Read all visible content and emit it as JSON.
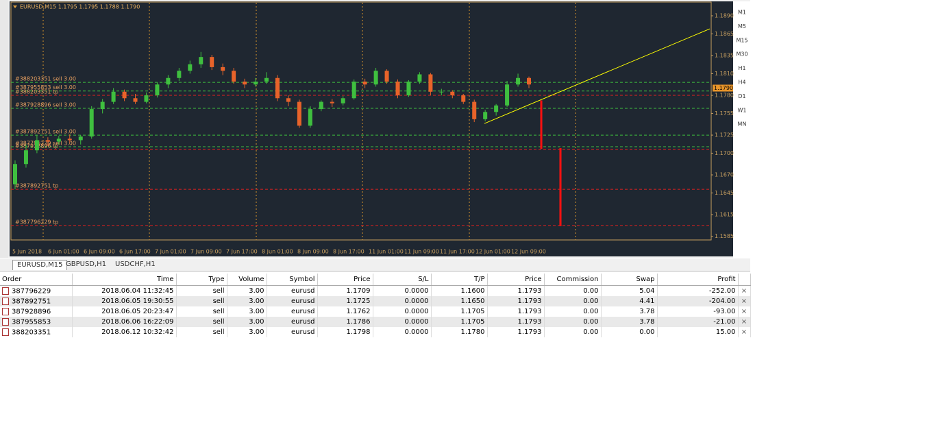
{
  "chart": {
    "title": "EURUSD,M15  1.1795 1.1795 1.1788 1.1790",
    "ylim": [
      1.158,
      1.1909
    ],
    "yticks": [
      {
        "value": 1.189,
        "label": "1.1890"
      },
      1.1865,
      1.1835,
      {
        "value": 1.181,
        "label": "1.1810"
      },
      {
        "value": 1.178,
        "label": "1.1780"
      },
      1.1755,
      1.1725,
      {
        "value": 1.17,
        "label": "1.1700"
      },
      {
        "value": 1.167,
        "label": "1.1670"
      },
      1.1645,
      1.1615,
      1.1585
    ],
    "xticks": [
      "5 Jun 2018",
      "6 Jun 01:00",
      "6 Jun 09:00",
      "6 Jun 17:00",
      "7 Jun 01:00",
      "7 Jun 09:00",
      "7 Jun 17:00",
      "8 Jun 01:00",
      "8 Jun 09:00",
      "8 Jun 17:00",
      "11 Jun 01:00",
      "11 Jun 09:00",
      "11 Jun 17:00",
      "12 Jun 01:00",
      "12 Jun 09:00"
    ],
    "timeframes": [
      "M1",
      "M5",
      "M15",
      "M30",
      "H1",
      "H4",
      "D1",
      "W1",
      "MN"
    ],
    "up_color": "#3fbf3f",
    "down_color": "#e8632a",
    "candles": [
      [
        1.1657,
        1.169,
        1.165,
        1.1685
      ],
      [
        1.1685,
        1.1712,
        1.168,
        1.1704
      ],
      [
        1.1704,
        1.1725,
        1.17,
        1.1718
      ],
      [
        1.1718,
        1.1722,
        1.171,
        1.1716
      ],
      [
        1.1716,
        1.1724,
        1.1712,
        1.172
      ],
      [
        1.172,
        1.1726,
        1.1714,
        1.1718
      ],
      [
        1.1718,
        1.1725,
        1.1712,
        1.1723
      ],
      [
        1.1723,
        1.1765,
        1.172,
        1.1761
      ],
      [
        1.1761,
        1.1775,
        1.1755,
        1.1771
      ],
      [
        1.1771,
        1.179,
        1.1768,
        1.1785
      ],
      [
        1.1785,
        1.1788,
        1.1772,
        1.1776
      ],
      [
        1.1776,
        1.1782,
        1.1768,
        1.1771
      ],
      [
        1.1771,
        1.1784,
        1.1769,
        1.178
      ],
      [
        1.178,
        1.1798,
        1.1777,
        1.1795
      ],
      [
        1.1795,
        1.1808,
        1.179,
        1.1804
      ],
      [
        1.1804,
        1.1818,
        1.18,
        1.1814
      ],
      [
        1.1814,
        1.1828,
        1.181,
        1.1823
      ],
      [
        1.1823,
        1.184,
        1.1818,
        1.1833
      ],
      [
        1.1833,
        1.1836,
        1.1815,
        1.1819
      ],
      [
        1.1819,
        1.1824,
        1.1808,
        1.1814
      ],
      [
        1.1814,
        1.1818,
        1.1796,
        1.1799
      ],
      [
        1.1799,
        1.1803,
        1.179,
        1.1795
      ],
      [
        1.1795,
        1.1804,
        1.1792,
        1.1799
      ],
      [
        1.1799,
        1.1812,
        1.1796,
        1.1804
      ],
      [
        1.1804,
        1.1808,
        1.1772,
        1.1776
      ],
      [
        1.1776,
        1.178,
        1.1765,
        1.1771
      ],
      [
        1.1771,
        1.1774,
        1.1735,
        1.1738
      ],
      [
        1.1738,
        1.1765,
        1.1735,
        1.1761
      ],
      [
        1.1761,
        1.1773,
        1.1758,
        1.1771
      ],
      [
        1.1771,
        1.1775,
        1.1764,
        1.1769
      ],
      [
        1.1769,
        1.1779,
        1.1766,
        1.1776
      ],
      [
        1.1776,
        1.1802,
        1.1774,
        1.1799
      ],
      [
        1.1799,
        1.1803,
        1.179,
        1.1795
      ],
      [
        1.1795,
        1.1818,
        1.1792,
        1.1814
      ],
      [
        1.1814,
        1.1816,
        1.1796,
        1.1799
      ],
      [
        1.1799,
        1.1802,
        1.1776,
        1.178
      ],
      [
        1.178,
        1.1801,
        1.1778,
        1.1799
      ],
      [
        1.1799,
        1.1812,
        1.1796,
        1.1809
      ],
      [
        1.1809,
        1.1811,
        1.178,
        1.1785
      ],
      [
        1.1785,
        1.1789,
        1.178,
        1.1785
      ],
      [
        1.1785,
        1.1787,
        1.1776,
        1.178
      ],
      [
        1.178,
        1.1782,
        1.1768,
        1.1771
      ],
      [
        1.1771,
        1.1774,
        1.1743,
        1.1747
      ],
      [
        1.1747,
        1.176,
        1.1744,
        1.1757
      ],
      [
        1.1757,
        1.1768,
        1.1752,
        1.1766
      ],
      [
        1.1766,
        1.18,
        1.1764,
        1.1795
      ],
      [
        1.1795,
        1.181,
        1.1792,
        1.1804
      ],
      [
        1.1804,
        1.1806,
        1.179,
        1.1795
      ]
    ],
    "order_lines": [
      {
        "label": "#388203351 sell 3.00",
        "price": 1.1798,
        "color": "#3fbf3f"
      },
      {
        "label": "#387955853 sell 3.00",
        "price": 1.1786,
        "color": "#3fbf3f"
      },
      {
        "label": "#388203351 tp",
        "price": 1.178,
        "color": "#e02020"
      },
      {
        "label": "#387928896 sell 3.00",
        "price": 1.1762,
        "color": "#3fbf3f"
      },
      {
        "label": "#387892751 sell 3.00",
        "price": 1.1725,
        "color": "#3fbf3f"
      },
      {
        "label": "#387796229 sell 3.00",
        "price": 1.1709,
        "color": "#3fbf3f"
      },
      {
        "label": "#387928896 tp",
        "price": 1.1705,
        "color": "#e02020"
      },
      {
        "label": "#387892751 tp",
        "price": 1.165,
        "color": "#e02020"
      },
      {
        "label": "#387796229 tp",
        "price": 1.16,
        "color": "#e02020"
      }
    ],
    "current_price": {
      "value": 1.179,
      "label": "1.1790"
    },
    "trendline": [
      1.1741,
      1.1872
    ],
    "trendline_color": "#ffff00",
    "vertical_bars": [
      [
        1.1773,
        1.1706
      ],
      [
        1.1707,
        1.1599
      ]
    ],
    "vertical_bar_color": "#ff1010"
  },
  "tabs": [
    "EURUSD,M15",
    "GBPUSD,H1",
    "USDCHF,H1"
  ],
  "table": {
    "headers": [
      "Order",
      "Time",
      "Type",
      "Volume",
      "Symbol",
      "Price",
      "S/L",
      "T/P",
      "Price",
      "Commission",
      "Swap",
      "Profit"
    ],
    "rows": [
      [
        "387796229",
        "2018.06.04 11:32:45",
        "sell",
        "3.00",
        "eurusd",
        "1.1709",
        "0.0000",
        "1.1600",
        "1.1793",
        "0.00",
        "5.04",
        "-252.00"
      ],
      [
        "387892751",
        "2018.06.05 19:30:55",
        "sell",
        "3.00",
        "eurusd",
        "1.1725",
        "0.0000",
        "1.1650",
        "1.1793",
        "0.00",
        "4.41",
        "-204.00"
      ],
      [
        "387928896",
        "2018.06.05 20:23:47",
        "sell",
        "3.00",
        "eurusd",
        "1.1762",
        "0.0000",
        "1.1705",
        "1.1793",
        "0.00",
        "3.78",
        "-93.00"
      ],
      [
        "387955853",
        "2018.06.06 16:22:09",
        "sell",
        "3.00",
        "eurusd",
        "1.1786",
        "0.0000",
        "1.1705",
        "1.1793",
        "0.00",
        "3.78",
        "-21.00"
      ],
      [
        "388203351",
        "2018.06.12 10:32:42",
        "sell",
        "3.00",
        "eurusd",
        "1.1798",
        "0.0000",
        "1.1780",
        "1.1793",
        "0.00",
        "0.00",
        "15.00"
      ]
    ]
  }
}
